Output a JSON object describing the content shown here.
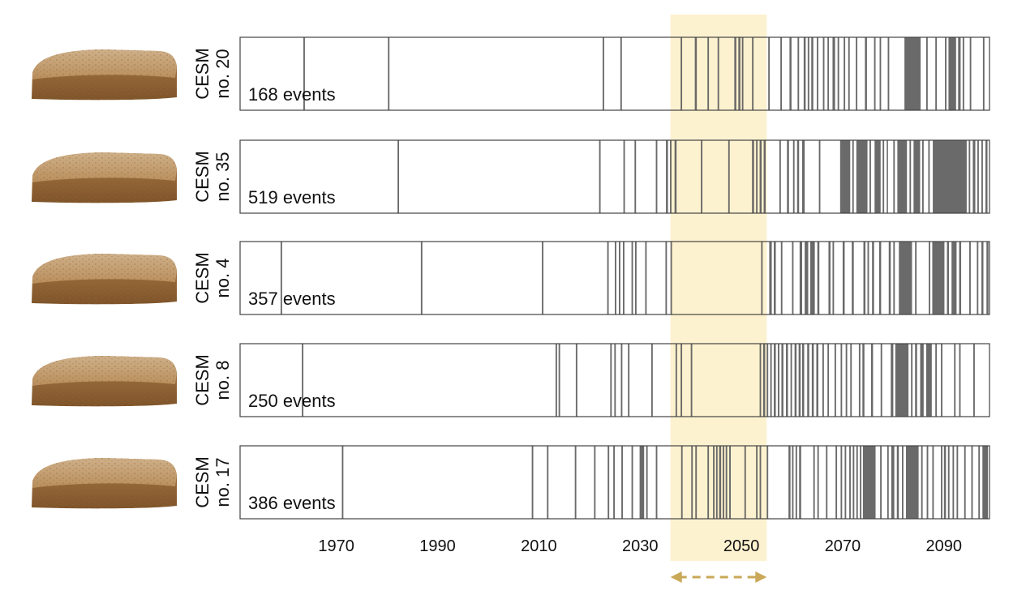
{
  "chart_data": {
    "type": "event-strip",
    "xlim": [
      1951,
      2099
    ],
    "x_ticks": [
      1970,
      1990,
      2010,
      2030,
      2050,
      2070,
      2090
    ],
    "highlight": {
      "x_range": [
        2036,
        2055
      ],
      "color": "#fdf2cf",
      "arrow_color": "#c9a857"
    },
    "event_color": "#5f5f5f",
    "panels": [
      {
        "label_line1": "CESM",
        "label_line2": "no. 20",
        "events_text": "168 events",
        "spans": [
          [
            1963.5,
            1963.8
          ],
          [
            1980.2,
            1980.5
          ],
          [
            2022.6,
            2022.9
          ],
          [
            2026.1,
            2026.4
          ],
          [
            2038.0,
            2038.3
          ],
          [
            2040.8,
            2041.2
          ],
          [
            2043.3,
            2043.6
          ],
          [
            2045.3,
            2045.6
          ],
          [
            2048.6,
            2049.0
          ],
          [
            2049.4,
            2049.8
          ],
          [
            2050.1,
            2050.4
          ],
          [
            2052.1,
            2052.4
          ],
          [
            2055.3,
            2055.6
          ],
          [
            2057.7,
            2058.0
          ],
          [
            2059.5,
            2059.9
          ],
          [
            2061.1,
            2061.4
          ],
          [
            2062.3,
            2062.7
          ],
          [
            2063.1,
            2063.4
          ],
          [
            2063.8,
            2064.2
          ],
          [
            2064.9,
            2065.2
          ],
          [
            2066.1,
            2066.4
          ],
          [
            2067.0,
            2067.3
          ],
          [
            2068.0,
            2068.5
          ],
          [
            2069.0,
            2069.3
          ],
          [
            2070.2,
            2070.5
          ],
          [
            2071.1,
            2071.4
          ],
          [
            2072.6,
            2072.9
          ],
          [
            2074.4,
            2074.8
          ],
          [
            2076.2,
            2076.5
          ],
          [
            2077.3,
            2077.6
          ],
          [
            2078.9,
            2079.2
          ],
          [
            2082.2,
            2085.4
          ],
          [
            2086.5,
            2086.8
          ],
          [
            2088.3,
            2088.6
          ],
          [
            2090.2,
            2090.5
          ],
          [
            2090.9,
            2092.4
          ],
          [
            2092.8,
            2093.3
          ],
          [
            2093.7,
            2094.0
          ],
          [
            2095.1,
            2095.4
          ],
          [
            2097.7,
            2098.0
          ]
        ]
      },
      {
        "label_line1": "CESM",
        "label_line2": "no. 35",
        "events_text": "519 events",
        "spans": [
          [
            1982.1,
            1982.4
          ],
          [
            2021.9,
            2022.2
          ],
          [
            2026.7,
            2027.0
          ],
          [
            2028.9,
            2029.2
          ],
          [
            2033.1,
            2033.4
          ],
          [
            2035.1,
            2035.5
          ],
          [
            2035.9,
            2036.2
          ],
          [
            2036.8,
            2037.2
          ],
          [
            2042.0,
            2042.3
          ],
          [
            2047.4,
            2047.7
          ],
          [
            2052.1,
            2052.5
          ],
          [
            2052.9,
            2053.2
          ],
          [
            2053.6,
            2054.0
          ],
          [
            2054.4,
            2054.8
          ],
          [
            2057.5,
            2057.8
          ],
          [
            2059.0,
            2059.4
          ],
          [
            2060.2,
            2060.5
          ],
          [
            2061.0,
            2061.4
          ],
          [
            2062.0,
            2062.5
          ],
          [
            2065.3,
            2065.6
          ],
          [
            2069.5,
            2071.5
          ],
          [
            2071.9,
            2072.2
          ],
          [
            2072.7,
            2074.9
          ],
          [
            2075.3,
            2075.6
          ],
          [
            2076.3,
            2077.5
          ],
          [
            2077.9,
            2078.2
          ],
          [
            2078.7,
            2078.9
          ],
          [
            2080.0,
            2080.3
          ],
          [
            2080.8,
            2082.7
          ],
          [
            2083.2,
            2083.5
          ],
          [
            2084.0,
            2085.3
          ],
          [
            2085.7,
            2086.0
          ],
          [
            2086.9,
            2087.2
          ],
          [
            2087.8,
            2094.5
          ],
          [
            2094.9,
            2095.2
          ],
          [
            2095.7,
            2096.2
          ],
          [
            2096.6,
            2096.9
          ],
          [
            2097.4,
            2097.7
          ],
          [
            2098.2,
            2098.6
          ]
        ]
      },
      {
        "label_line1": "CESM",
        "label_line2": "no. 4",
        "events_text": "357 events",
        "spans": [
          [
            1959.0,
            1959.3
          ],
          [
            1986.7,
            1987.0
          ],
          [
            2010.6,
            2010.9
          ],
          [
            2023.5,
            2023.8
          ],
          [
            2025.0,
            2025.3
          ],
          [
            2025.8,
            2026.1
          ],
          [
            2026.6,
            2026.9
          ],
          [
            2028.3,
            2028.6
          ],
          [
            2029.0,
            2029.3
          ],
          [
            2031.0,
            2031.3
          ],
          [
            2035.0,
            2035.3
          ],
          [
            2036.0,
            2036.3
          ],
          [
            2053.9,
            2054.2
          ],
          [
            2055.5,
            2056.0
          ],
          [
            2056.4,
            2056.8
          ],
          [
            2057.8,
            2058.1
          ],
          [
            2060.0,
            2060.3
          ],
          [
            2061.5,
            2062.0
          ],
          [
            2062.5,
            2063.2
          ],
          [
            2063.6,
            2064.5
          ],
          [
            2065.0,
            2065.4
          ],
          [
            2067.2,
            2067.6
          ],
          [
            2068.0,
            2068.3
          ],
          [
            2070.0,
            2070.4
          ],
          [
            2071.8,
            2072.2
          ],
          [
            2074.1,
            2074.5
          ],
          [
            2074.9,
            2075.2
          ],
          [
            2075.8,
            2076.2
          ],
          [
            2077.2,
            2077.6
          ],
          [
            2079.1,
            2079.5
          ],
          [
            2080.0,
            2080.3
          ],
          [
            2081.1,
            2083.7
          ],
          [
            2084.3,
            2084.6
          ],
          [
            2087.0,
            2087.3
          ],
          [
            2087.7,
            2090.1
          ],
          [
            2090.6,
            2091.0
          ],
          [
            2091.5,
            2092.5
          ],
          [
            2093.0,
            2093.4
          ],
          [
            2095.0,
            2095.3
          ],
          [
            2096.5,
            2096.8
          ],
          [
            2097.4,
            2097.8
          ],
          [
            2098.4,
            2098.8
          ]
        ]
      },
      {
        "label_line1": "CESM",
        "label_line2": "no. 8",
        "events_text": "250 events",
        "spans": [
          [
            1963.2,
            1963.5
          ],
          [
            2013.3,
            2013.6
          ],
          [
            2013.9,
            2014.2
          ],
          [
            2017.3,
            2017.6
          ],
          [
            2024.1,
            2024.4
          ],
          [
            2024.9,
            2025.2
          ],
          [
            2026.2,
            2026.5
          ],
          [
            2027.6,
            2027.9
          ],
          [
            2032.2,
            2032.5
          ],
          [
            2037.0,
            2037.3
          ],
          [
            2038.0,
            2038.3
          ],
          [
            2040.0,
            2040.3
          ],
          [
            2053.6,
            2053.9
          ],
          [
            2054.3,
            2054.7
          ],
          [
            2055.0,
            2055.3
          ],
          [
            2055.7,
            2056.0
          ],
          [
            2056.4,
            2056.8
          ],
          [
            2057.2,
            2057.5
          ],
          [
            2057.9,
            2058.3
          ],
          [
            2058.8,
            2059.2
          ],
          [
            2059.7,
            2060.0
          ],
          [
            2060.5,
            2060.9
          ],
          [
            2061.3,
            2061.7
          ],
          [
            2062.0,
            2062.4
          ],
          [
            2063.0,
            2063.4
          ],
          [
            2063.9,
            2064.3
          ],
          [
            2064.8,
            2065.2
          ],
          [
            2066.0,
            2066.3
          ],
          [
            2067.0,
            2067.3
          ],
          [
            2068.4,
            2068.7
          ],
          [
            2069.6,
            2069.9
          ],
          [
            2070.6,
            2070.9
          ],
          [
            2071.5,
            2071.8
          ],
          [
            2073.2,
            2073.5
          ],
          [
            2073.9,
            2074.3
          ],
          [
            2075.6,
            2076.0
          ],
          [
            2077.5,
            2077.8
          ],
          [
            2079.5,
            2080.0
          ],
          [
            2080.4,
            2083.0
          ],
          [
            2083.5,
            2083.8
          ],
          [
            2084.3,
            2084.7
          ],
          [
            2085.3,
            2086.0
          ],
          [
            2086.5,
            2087.6
          ],
          [
            2088.3,
            2088.6
          ],
          [
            2089.4,
            2089.7
          ],
          [
            2092.0,
            2092.3
          ],
          [
            2093.0,
            2093.3
          ],
          [
            2095.8,
            2096.1
          ]
        ]
      },
      {
        "label_line1": "CESM",
        "label_line2": "no. 17",
        "events_text": "386 events",
        "spans": [
          [
            1971.1,
            1971.4
          ],
          [
            2008.6,
            2008.9
          ],
          [
            2011.6,
            2011.9
          ],
          [
            2017.1,
            2017.4
          ],
          [
            2020.9,
            2021.2
          ],
          [
            2023.6,
            2023.9
          ],
          [
            2024.7,
            2025.0
          ],
          [
            2026.3,
            2026.6
          ],
          [
            2028.3,
            2028.6
          ],
          [
            2029.9,
            2030.8
          ],
          [
            2031.2,
            2031.5
          ],
          [
            2033.1,
            2033.4
          ],
          [
            2038.1,
            2038.4
          ],
          [
            2040.1,
            2040.4
          ],
          [
            2040.9,
            2041.2
          ],
          [
            2043.3,
            2043.6
          ],
          [
            2044.4,
            2044.7
          ],
          [
            2045.0,
            2045.3
          ],
          [
            2045.6,
            2046.0
          ],
          [
            2046.3,
            2046.6
          ],
          [
            2046.9,
            2047.2
          ],
          [
            2047.6,
            2047.9
          ],
          [
            2050.6,
            2050.9
          ],
          [
            2052.9,
            2053.2
          ],
          [
            2053.6,
            2053.9
          ],
          [
            2055.0,
            2055.3
          ],
          [
            2059.3,
            2059.7
          ],
          [
            2060.0,
            2060.3
          ],
          [
            2060.7,
            2061.0
          ],
          [
            2061.4,
            2061.8
          ],
          [
            2064.2,
            2064.5
          ],
          [
            2065.0,
            2065.3
          ],
          [
            2066.7,
            2067.0
          ],
          [
            2068.6,
            2068.9
          ],
          [
            2069.6,
            2069.9
          ],
          [
            2070.4,
            2070.7
          ],
          [
            2071.3,
            2071.6
          ],
          [
            2072.0,
            2072.3
          ],
          [
            2072.7,
            2073.0
          ],
          [
            2073.4,
            2073.7
          ],
          [
            2074.0,
            2076.5
          ],
          [
            2077.4,
            2077.7
          ],
          [
            2078.8,
            2079.1
          ],
          [
            2079.6,
            2080.2
          ],
          [
            2080.7,
            2081.1
          ],
          [
            2081.7,
            2082.0
          ],
          [
            2082.5,
            2085.0
          ],
          [
            2085.5,
            2085.8
          ],
          [
            2086.6,
            2086.9
          ],
          [
            2087.7,
            2088.0
          ],
          [
            2089.4,
            2089.7
          ],
          [
            2090.0,
            2090.4
          ],
          [
            2090.8,
            2091.1
          ],
          [
            2091.7,
            2092.0
          ],
          [
            2092.5,
            2092.8
          ],
          [
            2094.0,
            2094.3
          ],
          [
            2095.4,
            2095.7
          ],
          [
            2096.8,
            2097.1
          ],
          [
            2097.6,
            2098.7
          ]
        ]
      }
    ]
  }
}
